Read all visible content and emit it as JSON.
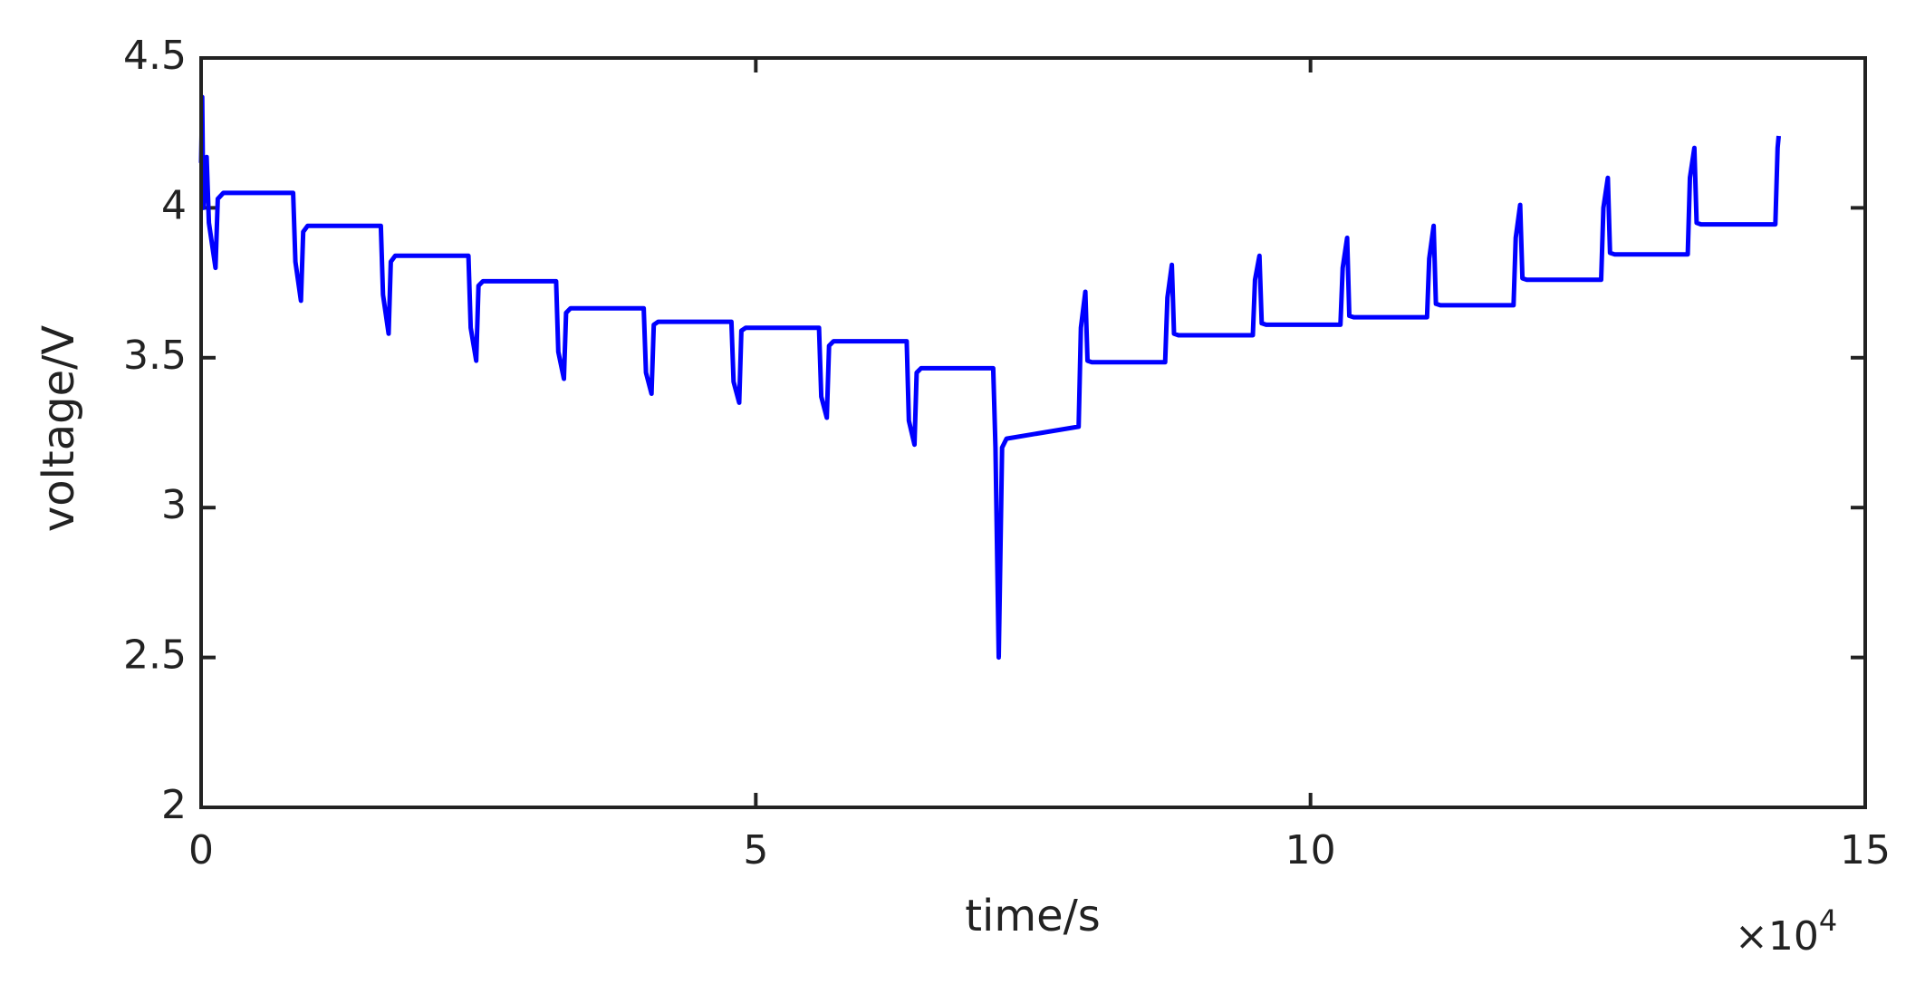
{
  "chart_data": {
    "type": "line",
    "xlabel": "time/s",
    "ylabel": "voltage/V",
    "x_multiplier": "×10",
    "x_multiplier_exponent": "4",
    "color": "#0000ff",
    "x": [
      0,
      0.01,
      0.02,
      0.05,
      0.07,
      0.13,
      0.15,
      0.2,
      0.83,
      0.85,
      0.9,
      0.92,
      0.96,
      1.62,
      1.64,
      1.69,
      1.71,
      1.75,
      2.41,
      2.43,
      2.48,
      2.5,
      2.54,
      3.2,
      3.22,
      3.27,
      3.29,
      3.33,
      3.99,
      4.01,
      4.06,
      4.08,
      4.12,
      4.78,
      4.8,
      4.85,
      4.87,
      4.91,
      5.57,
      5.59,
      5.64,
      5.66,
      5.7,
      6.36,
      6.38,
      6.43,
      6.45,
      6.49,
      7.14,
      7.16,
      7.19,
      7.22,
      7.26,
      7.91,
      7.93,
      7.97,
      7.99,
      8.03,
      8.69,
      8.71,
      8.75,
      8.77,
      8.81,
      9.48,
      9.5,
      9.54,
      9.56,
      9.6,
      10.27,
      10.29,
      10.33,
      10.35,
      10.39,
      11.05,
      11.07,
      11.11,
      11.13,
      11.17,
      11.83,
      11.85,
      11.89,
      11.91,
      11.95,
      12.62,
      12.64,
      12.68,
      12.7,
      12.74,
      13.4,
      13.42,
      13.46,
      13.48,
      13.52,
      14.19,
      14.21,
      14.22
    ],
    "values": [
      4.15,
      4.37,
      4.0,
      4.17,
      3.95,
      3.8,
      4.03,
      4.05,
      4.05,
      3.82,
      3.69,
      3.92,
      3.94,
      3.94,
      3.71,
      3.58,
      3.82,
      3.84,
      3.84,
      3.6,
      3.49,
      3.74,
      3.755,
      3.755,
      3.52,
      3.43,
      3.65,
      3.665,
      3.665,
      3.45,
      3.38,
      3.61,
      3.62,
      3.62,
      3.42,
      3.35,
      3.59,
      3.6,
      3.6,
      3.37,
      3.3,
      3.54,
      3.555,
      3.555,
      3.29,
      3.21,
      3.45,
      3.465,
      3.465,
      3.2,
      2.5,
      3.2,
      3.23,
      3.27,
      3.6,
      3.72,
      3.49,
      3.485,
      3.485,
      3.7,
      3.81,
      3.58,
      3.575,
      3.575,
      3.76,
      3.84,
      3.615,
      3.61,
      3.61,
      3.8,
      3.9,
      3.64,
      3.635,
      3.635,
      3.83,
      3.94,
      3.68,
      3.675,
      3.675,
      3.9,
      4.01,
      3.765,
      3.76,
      3.76,
      4.0,
      4.1,
      3.85,
      3.845,
      3.845,
      4.1,
      4.2,
      3.95,
      3.945,
      3.945,
      4.2,
      4.24
    ],
    "xlim": [
      0,
      15
    ],
    "xticks": [
      0,
      5,
      10,
      15
    ],
    "ylim": [
      2,
      4.5
    ],
    "yticks": [
      2,
      2.5,
      3,
      3.5,
      4,
      4.5
    ]
  }
}
